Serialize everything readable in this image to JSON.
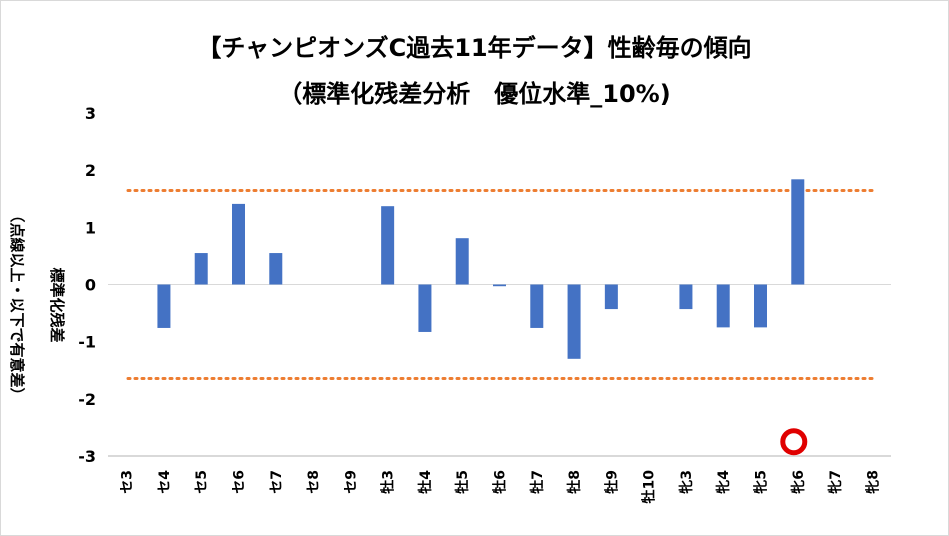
{
  "chart_data": {
    "type": "bar",
    "title": "【チャンピオンズC過去11年データ】性齢毎の傾向",
    "subtitle": "（標準化残差分析　優位水準_10%)",
    "ylabel": "標準化残差",
    "ylabel2": "（点線以上・以下で有意差）",
    "ylim": [
      -3,
      3
    ],
    "yticks": [
      "3",
      "2",
      "1",
      "0",
      "-1",
      "-2",
      "-3"
    ],
    "categories": [
      "セ3",
      "セ4",
      "セ5",
      "セ6",
      "セ7",
      "セ8",
      "セ9",
      "牡3",
      "牡4",
      "牡5",
      "牡6",
      "牡7",
      "牡8",
      "牡9",
      "牡10",
      "牝3",
      "牝4",
      "牝5",
      "牝6",
      "牝7",
      "牝8"
    ],
    "values": [
      0,
      -0.76,
      0.55,
      1.41,
      0.55,
      0,
      0,
      1.37,
      -0.83,
      0.81,
      -0.03,
      -0.76,
      -1.3,
      -0.43,
      0,
      -0.43,
      -0.75,
      -0.75,
      1.84,
      0,
      0
    ],
    "thresholds": [
      1.645,
      -1.645
    ],
    "highlight_category": "牝6",
    "bar_color": "#4472c4",
    "threshold_color": "#ed7d31",
    "highlight_color": "#e00000"
  }
}
